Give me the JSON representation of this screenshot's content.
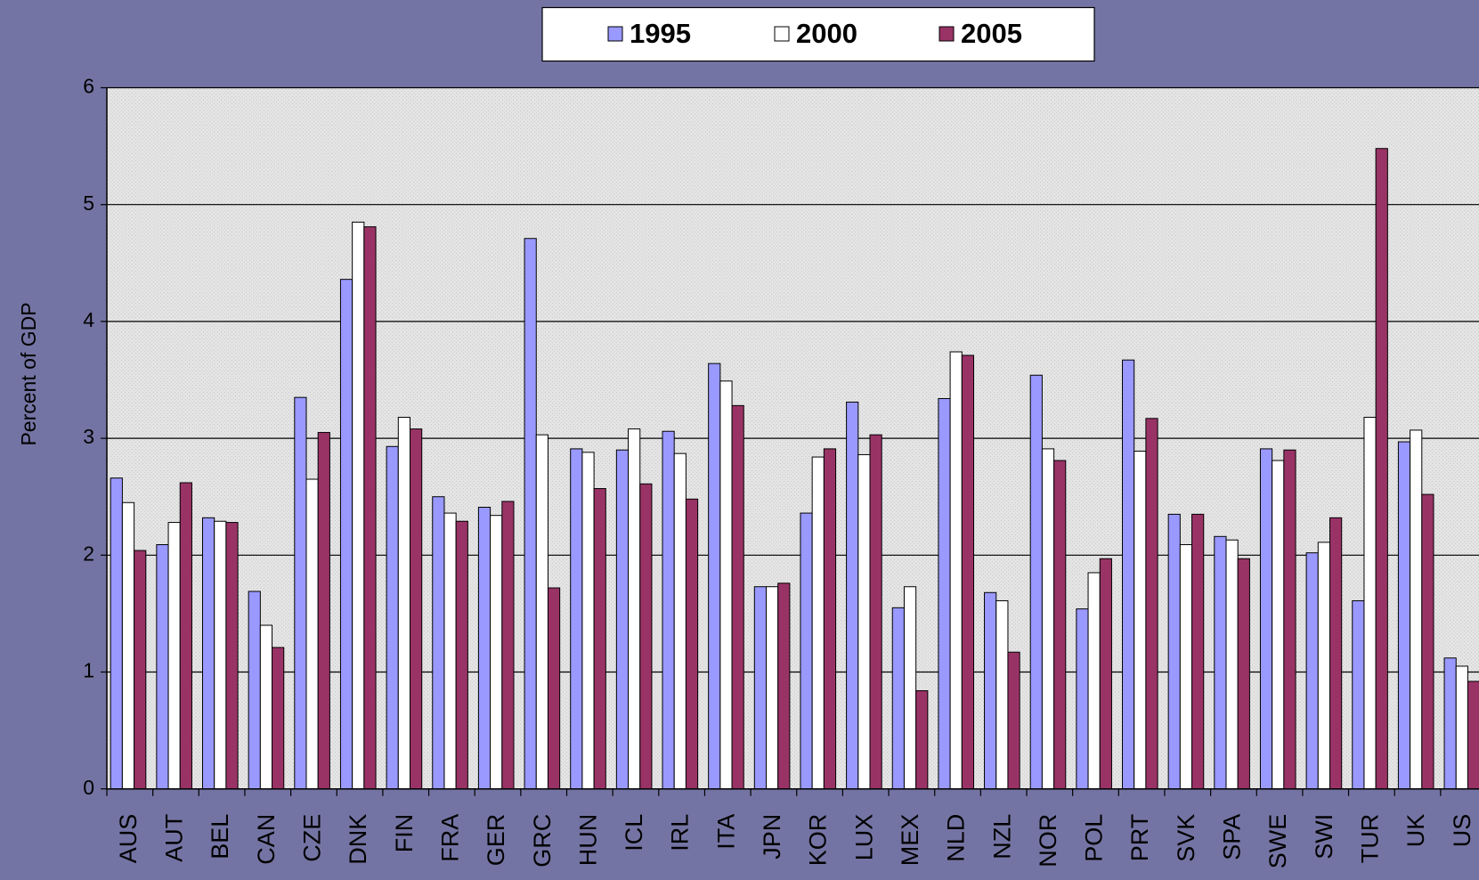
{
  "chart_data": {
    "type": "bar",
    "y_label": "Percent of GDP",
    "categories": [
      "AUS",
      "AUT",
      "BEL",
      "CAN",
      "CZE",
      "DNK",
      "FIN",
      "FRA",
      "GER",
      "GRC",
      "HUN",
      "ICL",
      "IRL",
      "ITA",
      "JPN",
      "KOR",
      "LUX",
      "MEX",
      "NLD",
      "NZL",
      "NOR",
      "POL",
      "PRT",
      "SVK",
      "SPA",
      "SWE",
      "SWI",
      "TUR",
      "UK",
      "US"
    ],
    "series": [
      {
        "name": "1995",
        "color": "#9999ff",
        "values": [
          2.66,
          2.09,
          2.32,
          1.69,
          3.35,
          4.36,
          2.93,
          2.5,
          2.41,
          4.71,
          2.91,
          2.9,
          3.06,
          3.64,
          1.73,
          2.36,
          3.31,
          1.55,
          3.34,
          1.68,
          3.54,
          1.54,
          3.67,
          2.35,
          2.16,
          2.91,
          2.02,
          1.61,
          2.97,
          1.12
        ]
      },
      {
        "name": "2000",
        "color": "#ffffff",
        "values": [
          2.45,
          2.28,
          2.29,
          1.4,
          2.65,
          4.85,
          3.18,
          2.36,
          2.34,
          3.03,
          2.88,
          3.08,
          2.87,
          3.49,
          1.73,
          2.84,
          2.86,
          1.73,
          3.74,
          1.61,
          2.91,
          1.85,
          2.89,
          2.09,
          2.13,
          2.81,
          2.11,
          3.18,
          3.07,
          1.05
        ]
      },
      {
        "name": "2005",
        "color": "#993366",
        "values": [
          2.04,
          2.62,
          2.28,
          1.21,
          3.05,
          4.81,
          3.08,
          2.29,
          2.46,
          1.72,
          2.57,
          2.61,
          2.48,
          3.28,
          1.76,
          2.91,
          3.03,
          0.84,
          3.71,
          1.17,
          2.81,
          1.97,
          3.17,
          2.35,
          1.97,
          2.9,
          2.32,
          5.48,
          2.52,
          0.92
        ]
      }
    ],
    "ylim": [
      0,
      6
    ],
    "yticks": [
      0,
      1,
      2,
      3,
      4,
      5,
      6
    ],
    "grid": true,
    "legend": "top"
  }
}
